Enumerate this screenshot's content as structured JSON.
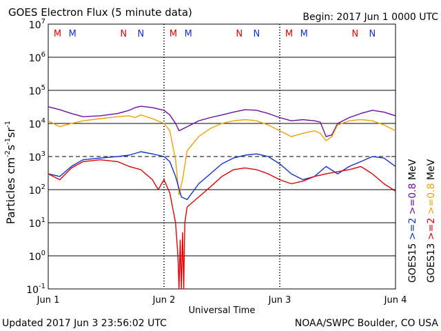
{
  "chart_data": {
    "type": "line",
    "title": "GOES Electron Flux (5 minute data)",
    "begin_label": "Begin: 2017 Jun 1 0000 UTC",
    "xlabel": "Universal Time",
    "ylabel_main": "Particles cm",
    "ylabel_sup1": "-2",
    "ylabel_mid1": "s",
    "ylabel_sup2": "-1",
    "ylabel_mid2": "sr",
    "ylabel_sup3": "-1",
    "x_ticks": [
      "Jun 1",
      "Jun 2",
      "Jun 3",
      "Jun 4"
    ],
    "x_range_days": [
      0,
      3
    ],
    "y_scale": "log",
    "ylim": [
      0.1,
      10000000
    ],
    "y_ticks": [
      {
        "base": "10",
        "exp": "7"
      },
      {
        "base": "10",
        "exp": "6"
      },
      {
        "base": "10",
        "exp": "5"
      },
      {
        "base": "10",
        "exp": "4"
      },
      {
        "base": "10",
        "exp": "3"
      },
      {
        "base": "10",
        "exp": "2"
      },
      {
        "base": "10",
        "exp": "1"
      },
      {
        "base": "10",
        "exp": "0"
      },
      {
        "base": "10",
        "exp": "-1"
      }
    ],
    "threshold_line": 1000,
    "midnight_noon_markers": [
      {
        "x": 0.08,
        "label": "M",
        "color": "#e00000"
      },
      {
        "x": 0.21,
        "label": "M",
        "color": "#1030d0"
      },
      {
        "x": 0.65,
        "label": "N",
        "color": "#e00000"
      },
      {
        "x": 0.8,
        "label": "N",
        "color": "#1030d0"
      },
      {
        "x": 1.08,
        "label": "M",
        "color": "#e00000"
      },
      {
        "x": 1.21,
        "label": "M",
        "color": "#1030d0"
      },
      {
        "x": 1.65,
        "label": "N",
        "color": "#e00000"
      },
      {
        "x": 1.8,
        "label": "N",
        "color": "#1030d0"
      },
      {
        "x": 2.08,
        "label": "M",
        "color": "#e00000"
      },
      {
        "x": 2.21,
        "label": "M",
        "color": "#1030d0"
      },
      {
        "x": 2.65,
        "label": "N",
        "color": "#e00000"
      },
      {
        "x": 2.8,
        "label": "N",
        "color": "#1030d0"
      }
    ],
    "series": [
      {
        "name": ">=0.8 MeV",
        "color": "#6a0da8",
        "x": [
          0,
          0.1,
          0.2,
          0.3,
          0.45,
          0.6,
          0.7,
          0.75,
          0.8,
          0.9,
          1.0,
          1.05,
          1.1,
          1.13,
          1.2,
          1.3,
          1.4,
          1.5,
          1.6,
          1.7,
          1.8,
          1.9,
          2.0,
          2.1,
          2.2,
          2.3,
          2.35,
          2.4,
          2.45,
          2.5,
          2.6,
          2.7,
          2.8,
          2.9,
          3.0
        ],
        "y": [
          32000,
          26000,
          20000,
          16000,
          17000,
          20000,
          25000,
          30000,
          33000,
          30000,
          25000,
          18000,
          10000,
          6000,
          8000,
          12000,
          15000,
          18000,
          22000,
          26000,
          25000,
          20000,
          15000,
          12000,
          13000,
          12000,
          11000,
          4000,
          4500,
          10000,
          15000,
          20000,
          25000,
          22000,
          17000
        ]
      },
      {
        "name": ">=0.8 MeV",
        "color": "#f0a000",
        "x": [
          0,
          0.1,
          0.2,
          0.3,
          0.45,
          0.6,
          0.7,
          0.75,
          0.8,
          0.9,
          1.0,
          1.05,
          1.1,
          1.13,
          1.16,
          1.2,
          1.3,
          1.4,
          1.5,
          1.6,
          1.7,
          1.8,
          1.9,
          2.0,
          2.1,
          2.2,
          2.3,
          2.35,
          2.4,
          2.45,
          2.5,
          2.6,
          2.7,
          2.8,
          2.9,
          3.0
        ],
        "y": [
          12000,
          8000,
          10000,
          12000,
          14000,
          16000,
          17000,
          15000,
          18000,
          14000,
          10000,
          6000,
          800,
          70,
          200,
          1500,
          4000,
          7000,
          10000,
          12000,
          13000,
          12000,
          9000,
          6000,
          4000,
          5000,
          6000,
          5000,
          3000,
          4000,
          9000,
          12000,
          13000,
          12000,
          9000,
          6000
        ]
      },
      {
        "name": ">=2 MeV",
        "color": "#1030d0",
        "x": [
          0,
          0.1,
          0.2,
          0.3,
          0.45,
          0.6,
          0.7,
          0.8,
          0.9,
          1.0,
          1.05,
          1.1,
          1.15,
          1.2,
          1.3,
          1.4,
          1.5,
          1.6,
          1.7,
          1.8,
          1.9,
          2.0,
          2.1,
          2.2,
          2.3,
          2.4,
          2.5,
          2.6,
          2.7,
          2.8,
          2.9,
          3.0
        ],
        "y": [
          300,
          250,
          500,
          800,
          900,
          1000,
          1100,
          1400,
          1200,
          1000,
          700,
          250,
          60,
          50,
          150,
          300,
          600,
          900,
          1100,
          1200,
          1000,
          600,
          300,
          200,
          250,
          500,
          300,
          500,
          700,
          1000,
          900,
          500
        ]
      },
      {
        "name": ">=2 MeV",
        "color": "#e00000",
        "x": [
          0,
          0.1,
          0.2,
          0.3,
          0.45,
          0.6,
          0.7,
          0.8,
          0.9,
          0.95,
          1.0,
          1.05,
          1.1,
          1.12,
          1.13,
          1.14,
          1.15,
          1.16,
          1.17,
          1.18,
          1.2,
          1.3,
          1.4,
          1.5,
          1.6,
          1.7,
          1.8,
          1.9,
          2.0,
          2.1,
          2.2,
          2.3,
          2.4,
          2.5,
          2.6,
          2.7,
          2.8,
          2.9,
          3.0
        ],
        "y": [
          300,
          200,
          450,
          700,
          800,
          700,
          500,
          400,
          200,
          100,
          200,
          80,
          10,
          1,
          0.1,
          3,
          0.1,
          5,
          0.1,
          10,
          30,
          60,
          120,
          250,
          400,
          450,
          400,
          300,
          200,
          150,
          180,
          250,
          300,
          350,
          400,
          500,
          300,
          150,
          90
        ]
      }
    ],
    "right_labels": [
      {
        "satellite": "GOES15",
        "lo": ">=2",
        "hi": ">=0.8",
        "unit": "MeV",
        "lo_color": "#1030d0",
        "hi_color": "#6a0da8"
      },
      {
        "satellite": "GOES13",
        "lo": ">=2",
        "hi": ">=0.8",
        "unit": "MeV",
        "lo_color": "#e00000",
        "hi_color": "#f0a000"
      }
    ]
  },
  "footer": {
    "updated": "Updated 2017 Jun  3 23:56:02 UTC",
    "source": "NOAA/SWPC Boulder, CO USA"
  }
}
